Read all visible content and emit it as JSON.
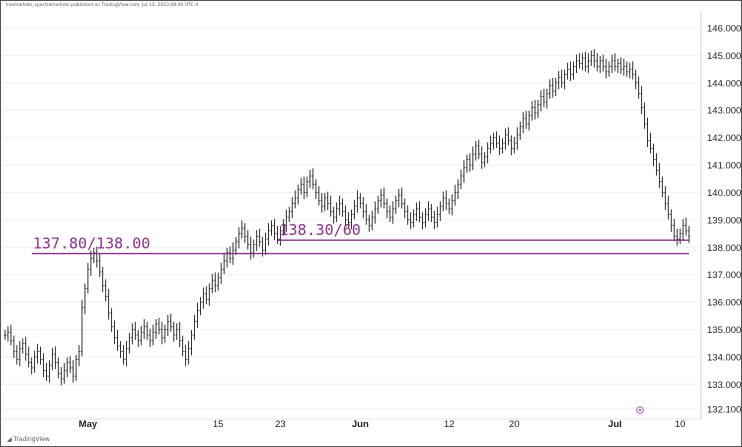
{
  "header": {
    "text": "livemarkets_spectramarkets published on TradingView.com, Jul 13, 2023 08:40 UTC-4"
  },
  "brand": {
    "text": "TradingView"
  },
  "chart_data": {
    "type": "line",
    "title": "",
    "xlabel": "",
    "ylabel": "",
    "ylim": [
      132.1,
      146.0
    ],
    "y_ticks": [
      "146.000",
      "145.000",
      "144.000",
      "143.000",
      "142.000",
      "141.000",
      "140.000",
      "139.000",
      "138.000",
      "137.000",
      "136.000",
      "135.000",
      "134.000",
      "133.000",
      "132.100"
    ],
    "x_ticks": [
      {
        "label": "May",
        "bold": true,
        "index": 28
      },
      {
        "label": "15",
        "bold": false,
        "index": 72
      },
      {
        "label": "23",
        "bold": false,
        "index": 93
      },
      {
        "label": "Jun",
        "bold": true,
        "index": 120
      },
      {
        "label": "12",
        "bold": false,
        "index": 150
      },
      {
        "label": "20",
        "bold": false,
        "index": 172
      },
      {
        "label": "Jul",
        "bold": true,
        "index": 206
      },
      {
        "label": "10",
        "bold": false,
        "index": 228
      }
    ],
    "series": [
      {
        "values": [
          134.8,
          134.9,
          134.6,
          134.2,
          133.9,
          134.3,
          134.5,
          134.1,
          133.8,
          133.6,
          134.0,
          134.2,
          133.9,
          133.5,
          133.3,
          133.7,
          134.1,
          133.8,
          133.4,
          133.2,
          133.5,
          133.8,
          133.6,
          133.3,
          133.9,
          134.2,
          135.8,
          136.5,
          137.2,
          137.6,
          137.8,
          137.5,
          137.1,
          136.6,
          136.2,
          135.6,
          135.1,
          134.7,
          134.4,
          134.2,
          133.9,
          134.3,
          134.7,
          135.0,
          134.8,
          134.6,
          134.9,
          135.1,
          134.8,
          134.6,
          134.9,
          135.2,
          135.0,
          134.7,
          135.0,
          135.3,
          135.1,
          134.8,
          135.0,
          134.6,
          134.2,
          133.9,
          134.3,
          134.8,
          135.3,
          135.7,
          136.0,
          136.3,
          136.1,
          136.5,
          136.8,
          136.6,
          136.9,
          137.2,
          137.5,
          137.8,
          137.6,
          137.9,
          138.2,
          138.5,
          138.7,
          138.4,
          138.1,
          137.8,
          138.1,
          138.4,
          138.2,
          137.9,
          138.3,
          138.6,
          138.8,
          138.5,
          138.3,
          138.6,
          138.8,
          139.1,
          139.3,
          139.6,
          139.8,
          140.1,
          140.3,
          140.0,
          140.4,
          140.6,
          140.3,
          140.0,
          139.7,
          139.5,
          139.8,
          139.6,
          139.3,
          139.1,
          139.4,
          139.6,
          139.3,
          139.0,
          138.9,
          139.2,
          139.5,
          139.8,
          139.6,
          139.3,
          139.0,
          138.8,
          139.1,
          139.4,
          139.7,
          139.9,
          139.6,
          139.3,
          139.1,
          139.4,
          139.7,
          139.9,
          139.6,
          139.3,
          139.0,
          138.9,
          139.2,
          139.4,
          139.1,
          138.9,
          139.2,
          139.4,
          139.1,
          138.9,
          139.2,
          139.5,
          139.8,
          139.6,
          139.4,
          139.7,
          140.0,
          140.3,
          140.6,
          140.9,
          141.2,
          141.0,
          141.4,
          141.7,
          141.4,
          141.1,
          141.3,
          141.6,
          141.8,
          142.0,
          141.8,
          141.6,
          141.8,
          142.1,
          141.9,
          141.6,
          141.8,
          142.1,
          142.4,
          142.7,
          142.5,
          142.8,
          143.1,
          142.9,
          143.2,
          143.5,
          143.3,
          143.6,
          143.9,
          143.7,
          144.0,
          144.2,
          144.0,
          144.3,
          144.5,
          144.3,
          144.6,
          144.8,
          144.7,
          144.9,
          144.6,
          144.8,
          145.0,
          144.8,
          144.6,
          144.8,
          144.6,
          144.4,
          144.6,
          144.8,
          144.6,
          144.7,
          144.5,
          144.6,
          144.4,
          144.5,
          144.3,
          144.0,
          143.6,
          143.1,
          142.5,
          141.9,
          141.6,
          141.2,
          140.8,
          140.4,
          140.0,
          139.6,
          139.2,
          138.8,
          138.4,
          138.3,
          138.5,
          138.8,
          138.6,
          138.4
        ]
      }
    ],
    "levels": [
      {
        "label": "137.80/138.00",
        "value": 137.77
      },
      {
        "label": "138.30/60",
        "value": 138.26
      }
    ],
    "colors": {
      "price": "#1a1a1a",
      "levels": "#8b2f8b",
      "grid": "#f0f0f0"
    }
  }
}
